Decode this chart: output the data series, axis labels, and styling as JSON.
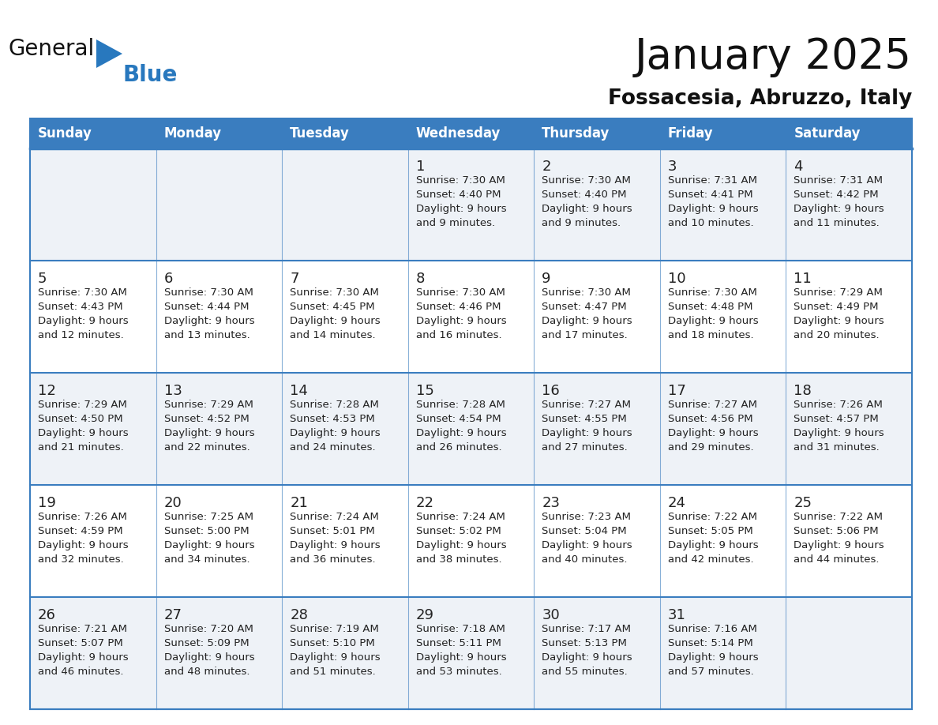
{
  "title": "January 2025",
  "subtitle": "Fossacesia, Abruzzo, Italy",
  "days_of_week": [
    "Sunday",
    "Monday",
    "Tuesday",
    "Wednesday",
    "Thursday",
    "Friday",
    "Saturday"
  ],
  "header_bg": "#3a7dbf",
  "header_text": "#ffffff",
  "row_bg_light": "#eef2f7",
  "row_bg_white": "#ffffff",
  "border_color": "#3a7dbf",
  "day_number_color": "#222222",
  "text_color": "#222222",
  "title_color": "#111111",
  "subtitle_color": "#111111",
  "logo_text_color": "#111111",
  "logo_blue_color": "#2878be",
  "calendar_data": [
    [
      {
        "day": null,
        "sunrise": null,
        "sunset": null,
        "daylight": null
      },
      {
        "day": null,
        "sunrise": null,
        "sunset": null,
        "daylight": null
      },
      {
        "day": null,
        "sunrise": null,
        "sunset": null,
        "daylight": null
      },
      {
        "day": 1,
        "sunrise": "7:30 AM",
        "sunset": "4:40 PM",
        "daylight": "9 hours and 9 minutes."
      },
      {
        "day": 2,
        "sunrise": "7:30 AM",
        "sunset": "4:40 PM",
        "daylight": "9 hours and 9 minutes."
      },
      {
        "day": 3,
        "sunrise": "7:31 AM",
        "sunset": "4:41 PM",
        "daylight": "9 hours and 10 minutes."
      },
      {
        "day": 4,
        "sunrise": "7:31 AM",
        "sunset": "4:42 PM",
        "daylight": "9 hours and 11 minutes."
      }
    ],
    [
      {
        "day": 5,
        "sunrise": "7:30 AM",
        "sunset": "4:43 PM",
        "daylight": "9 hours and 12 minutes."
      },
      {
        "day": 6,
        "sunrise": "7:30 AM",
        "sunset": "4:44 PM",
        "daylight": "9 hours and 13 minutes."
      },
      {
        "day": 7,
        "sunrise": "7:30 AM",
        "sunset": "4:45 PM",
        "daylight": "9 hours and 14 minutes."
      },
      {
        "day": 8,
        "sunrise": "7:30 AM",
        "sunset": "4:46 PM",
        "daylight": "9 hours and 16 minutes."
      },
      {
        "day": 9,
        "sunrise": "7:30 AM",
        "sunset": "4:47 PM",
        "daylight": "9 hours and 17 minutes."
      },
      {
        "day": 10,
        "sunrise": "7:30 AM",
        "sunset": "4:48 PM",
        "daylight": "9 hours and 18 minutes."
      },
      {
        "day": 11,
        "sunrise": "7:29 AM",
        "sunset": "4:49 PM",
        "daylight": "9 hours and 20 minutes."
      }
    ],
    [
      {
        "day": 12,
        "sunrise": "7:29 AM",
        "sunset": "4:50 PM",
        "daylight": "9 hours and 21 minutes."
      },
      {
        "day": 13,
        "sunrise": "7:29 AM",
        "sunset": "4:52 PM",
        "daylight": "9 hours and 22 minutes."
      },
      {
        "day": 14,
        "sunrise": "7:28 AM",
        "sunset": "4:53 PM",
        "daylight": "9 hours and 24 minutes."
      },
      {
        "day": 15,
        "sunrise": "7:28 AM",
        "sunset": "4:54 PM",
        "daylight": "9 hours and 26 minutes."
      },
      {
        "day": 16,
        "sunrise": "7:27 AM",
        "sunset": "4:55 PM",
        "daylight": "9 hours and 27 minutes."
      },
      {
        "day": 17,
        "sunrise": "7:27 AM",
        "sunset": "4:56 PM",
        "daylight": "9 hours and 29 minutes."
      },
      {
        "day": 18,
        "sunrise": "7:26 AM",
        "sunset": "4:57 PM",
        "daylight": "9 hours and 31 minutes."
      }
    ],
    [
      {
        "day": 19,
        "sunrise": "7:26 AM",
        "sunset": "4:59 PM",
        "daylight": "9 hours and 32 minutes."
      },
      {
        "day": 20,
        "sunrise": "7:25 AM",
        "sunset": "5:00 PM",
        "daylight": "9 hours and 34 minutes."
      },
      {
        "day": 21,
        "sunrise": "7:24 AM",
        "sunset": "5:01 PM",
        "daylight": "9 hours and 36 minutes."
      },
      {
        "day": 22,
        "sunrise": "7:24 AM",
        "sunset": "5:02 PM",
        "daylight": "9 hours and 38 minutes."
      },
      {
        "day": 23,
        "sunrise": "7:23 AM",
        "sunset": "5:04 PM",
        "daylight": "9 hours and 40 minutes."
      },
      {
        "day": 24,
        "sunrise": "7:22 AM",
        "sunset": "5:05 PM",
        "daylight": "9 hours and 42 minutes."
      },
      {
        "day": 25,
        "sunrise": "7:22 AM",
        "sunset": "5:06 PM",
        "daylight": "9 hours and 44 minutes."
      }
    ],
    [
      {
        "day": 26,
        "sunrise": "7:21 AM",
        "sunset": "5:07 PM",
        "daylight": "9 hours and 46 minutes."
      },
      {
        "day": 27,
        "sunrise": "7:20 AM",
        "sunset": "5:09 PM",
        "daylight": "9 hours and 48 minutes."
      },
      {
        "day": 28,
        "sunrise": "7:19 AM",
        "sunset": "5:10 PM",
        "daylight": "9 hours and 51 minutes."
      },
      {
        "day": 29,
        "sunrise": "7:18 AM",
        "sunset": "5:11 PM",
        "daylight": "9 hours and 53 minutes."
      },
      {
        "day": 30,
        "sunrise": "7:17 AM",
        "sunset": "5:13 PM",
        "daylight": "9 hours and 55 minutes."
      },
      {
        "day": 31,
        "sunrise": "7:16 AM",
        "sunset": "5:14 PM",
        "daylight": "9 hours and 57 minutes."
      },
      {
        "day": null,
        "sunrise": null,
        "sunset": null,
        "daylight": null
      }
    ]
  ]
}
